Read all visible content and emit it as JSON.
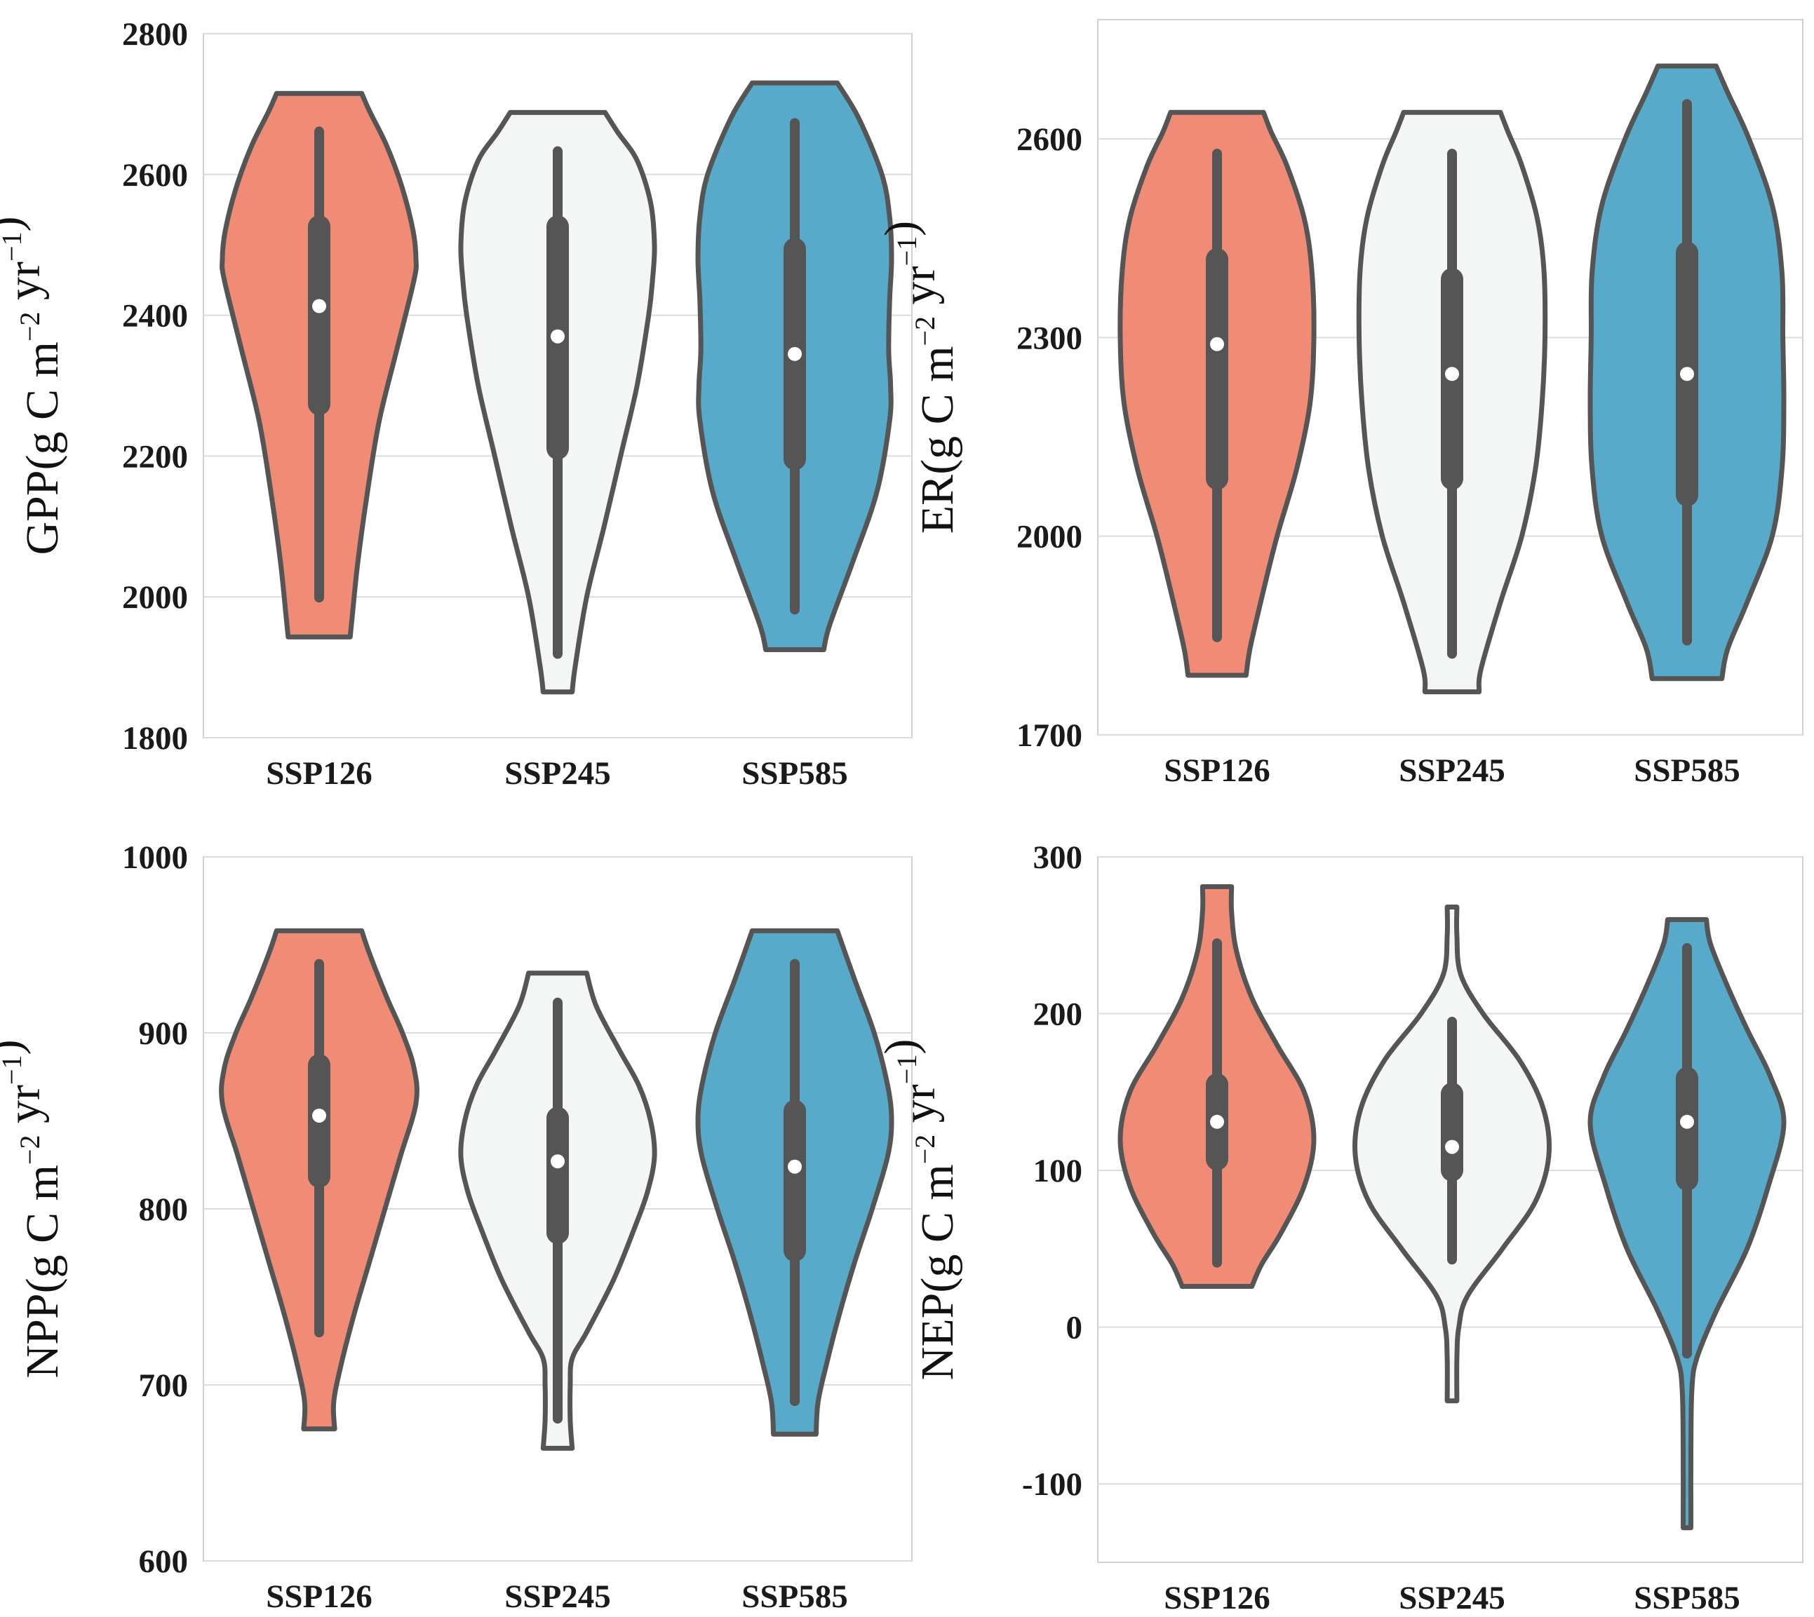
{
  "chart_data": [
    {
      "type": "violin",
      "ylabel": {
        "var": "GPP",
        "prefix": "(g C m",
        "exp1": "−2",
        "mid": " yr",
        "exp2": "−1",
        "suffix": ")"
      },
      "categories": [
        "SSP126",
        "SSP245",
        "SSP585"
      ],
      "yticks": [
        1800,
        2000,
        2200,
        2400,
        2600,
        2800
      ],
      "ylim": [
        1800,
        2800
      ],
      "grid": true,
      "violins": [
        {
          "name": "SSP126",
          "color": "#f08b76",
          "min": 1943,
          "max": 2715,
          "whisker_low": 1992,
          "whisker_high": 2668,
          "q1": 2258,
          "q3": 2542,
          "median": 2413,
          "profile": [
            [
              1943,
              0.32
            ],
            [
              1970,
              0.34
            ],
            [
              2050,
              0.4
            ],
            [
              2150,
              0.5
            ],
            [
              2250,
              0.62
            ],
            [
              2350,
              0.8
            ],
            [
              2450,
              0.98
            ],
            [
              2480,
              1.0
            ],
            [
              2520,
              0.97
            ],
            [
              2580,
              0.86
            ],
            [
              2640,
              0.7
            ],
            [
              2690,
              0.52
            ],
            [
              2715,
              0.44
            ]
          ]
        },
        {
          "name": "SSP245",
          "color": "#f4f6f5",
          "min": 1865,
          "max": 2688,
          "whisker_low": 1912,
          "whisker_high": 2640,
          "q1": 2195,
          "q3": 2542,
          "median": 2370,
          "profile": [
            [
              1865,
              0.15
            ],
            [
              1900,
              0.18
            ],
            [
              2000,
              0.3
            ],
            [
              2100,
              0.48
            ],
            [
              2200,
              0.65
            ],
            [
              2300,
              0.82
            ],
            [
              2400,
              0.94
            ],
            [
              2450,
              0.98
            ],
            [
              2500,
              1.0
            ],
            [
              2560,
              0.96
            ],
            [
              2620,
              0.82
            ],
            [
              2660,
              0.62
            ],
            [
              2688,
              0.49
            ]
          ]
        },
        {
          "name": "SSP585",
          "color": "#57aac9",
          "min": 1925,
          "max": 2730,
          "whisker_low": 1975,
          "whisker_high": 2680,
          "q1": 2180,
          "q3": 2510,
          "median": 2345,
          "profile": [
            [
              1925,
              0.3
            ],
            [
              1960,
              0.36
            ],
            [
              2050,
              0.6
            ],
            [
              2150,
              0.85
            ],
            [
              2250,
              0.98
            ],
            [
              2300,
              0.99
            ],
            [
              2350,
              0.97
            ],
            [
              2420,
              0.98
            ],
            [
              2480,
              1.0
            ],
            [
              2540,
              0.98
            ],
            [
              2600,
              0.9
            ],
            [
              2680,
              0.66
            ],
            [
              2730,
              0.44
            ]
          ]
        }
      ]
    },
    {
      "type": "violin",
      "ylabel": {
        "var": "ER",
        "prefix": "(g C m",
        "exp1": "−2",
        "mid": " yr",
        "exp2": "−1",
        "suffix": ")"
      },
      "categories": [
        "SSP126",
        "SSP245",
        "SSP585"
      ],
      "yticks": [
        1700,
        2000,
        2300,
        2600
      ],
      "ylim": [
        1700,
        2780
      ],
      "grid": true,
      "violins": [
        {
          "name": "SSP126",
          "color": "#f08b76",
          "min": 1790,
          "max": 2640,
          "whisker_low": 1840,
          "whisker_high": 2585,
          "q1": 2070,
          "q3": 2435,
          "median": 2290,
          "profile": [
            [
              1790,
              0.3
            ],
            [
              1830,
              0.34
            ],
            [
              1900,
              0.45
            ],
            [
              2000,
              0.62
            ],
            [
              2100,
              0.82
            ],
            [
              2200,
              0.96
            ],
            [
              2300,
              1.0
            ],
            [
              2400,
              0.98
            ],
            [
              2480,
              0.9
            ],
            [
              2560,
              0.72
            ],
            [
              2610,
              0.56
            ],
            [
              2640,
              0.48
            ]
          ]
        },
        {
          "name": "SSP245",
          "color": "#f4f6f5",
          "min": 1765,
          "max": 2640,
          "whisker_low": 1815,
          "whisker_high": 2585,
          "q1": 2070,
          "q3": 2405,
          "median": 2245,
          "profile": [
            [
              1765,
              0.28
            ],
            [
              1800,
              0.3
            ],
            [
              1900,
              0.5
            ],
            [
              2000,
              0.72
            ],
            [
              2100,
              0.86
            ],
            [
              2200,
              0.93
            ],
            [
              2300,
              0.96
            ],
            [
              2400,
              0.95
            ],
            [
              2480,
              0.88
            ],
            [
              2560,
              0.72
            ],
            [
              2610,
              0.58
            ],
            [
              2640,
              0.5
            ]
          ]
        },
        {
          "name": "SSP585",
          "color": "#57aac9",
          "min": 1785,
          "max": 2710,
          "whisker_low": 1835,
          "whisker_high": 2660,
          "q1": 2045,
          "q3": 2445,
          "median": 2245,
          "profile": [
            [
              1785,
              0.36
            ],
            [
              1830,
              0.42
            ],
            [
              1900,
              0.62
            ],
            [
              2000,
              0.88
            ],
            [
              2100,
              0.98
            ],
            [
              2200,
              1.0
            ],
            [
              2300,
              0.99
            ],
            [
              2400,
              0.98
            ],
            [
              2500,
              0.88
            ],
            [
              2600,
              0.64
            ],
            [
              2670,
              0.42
            ],
            [
              2710,
              0.3
            ]
          ]
        }
      ]
    },
    {
      "type": "violin",
      "ylabel": {
        "var": "NPP",
        "prefix": "(g C m",
        "exp1": "−2",
        "mid": " yr",
        "exp2": "−1",
        "suffix": ")"
      },
      "categories": [
        "SSP126",
        "SSP245",
        "SSP585"
      ],
      "yticks": [
        600,
        700,
        800,
        900,
        1000
      ],
      "ylim": [
        600,
        1000
      ],
      "grid": true,
      "violins": [
        {
          "name": "SSP126",
          "color": "#f08b76",
          "min": 675,
          "max": 958,
          "whisker_low": 727,
          "whisker_high": 942,
          "q1": 812,
          "q3": 888,
          "median": 853,
          "profile": [
            [
              675,
              0.16
            ],
            [
              690,
              0.15
            ],
            [
              710,
              0.22
            ],
            [
              740,
              0.36
            ],
            [
              770,
              0.52
            ],
            [
              800,
              0.68
            ],
            [
              830,
              0.84
            ],
            [
              860,
              1.0
            ],
            [
              880,
              0.98
            ],
            [
              900,
              0.86
            ],
            [
              920,
              0.7
            ],
            [
              945,
              0.52
            ],
            [
              958,
              0.44
            ]
          ]
        },
        {
          "name": "SSP245",
          "color": "#f4f6f5",
          "min": 664,
          "max": 934,
          "whisker_low": 678,
          "whisker_high": 920,
          "q1": 780,
          "q3": 858,
          "median": 827,
          "profile": [
            [
              664,
              0.15
            ],
            [
              680,
              0.13
            ],
            [
              700,
              0.13
            ],
            [
              715,
              0.15
            ],
            [
              730,
              0.3
            ],
            [
              760,
              0.58
            ],
            [
              790,
              0.8
            ],
            [
              810,
              0.93
            ],
            [
              830,
              1.0
            ],
            [
              850,
              0.96
            ],
            [
              870,
              0.84
            ],
            [
              890,
              0.64
            ],
            [
              915,
              0.4
            ],
            [
              934,
              0.3
            ]
          ]
        },
        {
          "name": "SSP585",
          "color": "#57aac9",
          "min": 672,
          "max": 958,
          "whisker_low": 688,
          "whisker_high": 942,
          "q1": 770,
          "q3": 862,
          "median": 824,
          "profile": [
            [
              672,
              0.22
            ],
            [
              690,
              0.24
            ],
            [
              710,
              0.32
            ],
            [
              740,
              0.46
            ],
            [
              770,
              0.62
            ],
            [
              800,
              0.8
            ],
            [
              830,
              0.96
            ],
            [
              850,
              1.0
            ],
            [
              870,
              0.96
            ],
            [
              900,
              0.82
            ],
            [
              930,
              0.62
            ],
            [
              958,
              0.44
            ]
          ]
        }
      ]
    },
    {
      "type": "violin",
      "ylabel": {
        "var": "NEP",
        "prefix": "(g C m",
        "exp1": "−2",
        "mid": " yr",
        "exp2": "−1",
        "suffix": ")"
      },
      "categories": [
        "SSP126",
        "SSP245",
        "SSP585"
      ],
      "yticks": [
        -100,
        0,
        100,
        200,
        300
      ],
      "ylim": [
        -150,
        300
      ],
      "grid": true,
      "violins": [
        {
          "name": "SSP126",
          "color": "#f08b76",
          "min": 26,
          "max": 281,
          "whisker_low": 38,
          "whisker_high": 248,
          "q1": 100,
          "q3": 162,
          "median": 131,
          "profile": [
            [
              26,
              0.36
            ],
            [
              40,
              0.46
            ],
            [
              60,
              0.66
            ],
            [
              90,
              0.9
            ],
            [
              120,
              1.0
            ],
            [
              150,
              0.9
            ],
            [
              180,
              0.62
            ],
            [
              210,
              0.36
            ],
            [
              240,
              0.2
            ],
            [
              265,
              0.15
            ],
            [
              281,
              0.15
            ]
          ]
        },
        {
          "name": "SSP245",
          "color": "#f4f6f5",
          "min": -47,
          "max": 268,
          "whisker_low": 40,
          "whisker_high": 198,
          "q1": 93,
          "q3": 156,
          "median": 115,
          "profile": [
            [
              -47,
              0.05
            ],
            [
              -20,
              0.05
            ],
            [
              0,
              0.07
            ],
            [
              20,
              0.16
            ],
            [
              50,
              0.52
            ],
            [
              80,
              0.86
            ],
            [
              110,
              1.0
            ],
            [
              140,
              0.94
            ],
            [
              170,
              0.7
            ],
            [
              200,
              0.32
            ],
            [
              225,
              0.09
            ],
            [
              250,
              0.05
            ],
            [
              268,
              0.05
            ]
          ]
        },
        {
          "name": "SSP585",
          "color": "#57aac9",
          "min": -128,
          "max": 260,
          "whisker_low": -20,
          "whisker_high": 245,
          "q1": 87,
          "q3": 166,
          "median": 131,
          "profile": [
            [
              -128,
              0.04
            ],
            [
              -80,
              0.04
            ],
            [
              -40,
              0.05
            ],
            [
              -20,
              0.1
            ],
            [
              10,
              0.3
            ],
            [
              50,
              0.62
            ],
            [
              90,
              0.84
            ],
            [
              130,
              1.0
            ],
            [
              160,
              0.86
            ],
            [
              190,
              0.62
            ],
            [
              220,
              0.4
            ],
            [
              245,
              0.24
            ],
            [
              260,
              0.2
            ]
          ]
        }
      ]
    }
  ]
}
